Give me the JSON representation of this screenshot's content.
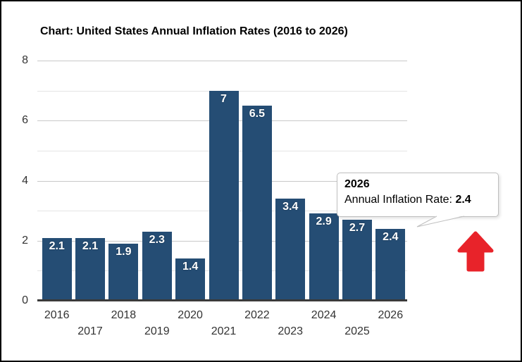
{
  "chart_data": {
    "type": "bar",
    "title": "Chart: United States Annual Inflation Rates (2016 to 2026)",
    "categories": [
      "2016",
      "2017",
      "2018",
      "2019",
      "2020",
      "2021",
      "2022",
      "2023",
      "2024",
      "2025",
      "2026"
    ],
    "values": [
      2.1,
      2.1,
      1.9,
      2.3,
      1.4,
      7,
      6.5,
      3.4,
      2.9,
      2.7,
      2.4
    ],
    "bar_labels": [
      "2.1",
      "2.1",
      "1.9",
      "2.3",
      "1.4",
      "7",
      "6.5",
      "3.4",
      "2.9",
      "2.7",
      "2.4"
    ],
    "xlabel": "",
    "ylabel": "",
    "ylim": [
      0,
      8
    ],
    "yticks": [
      0,
      2,
      4,
      6,
      8
    ],
    "gridline_step": 1,
    "grid": true,
    "legend": "none",
    "x_labels_staggered": true,
    "colors": {
      "bar": "#254d74",
      "bar_label_text": "#ffffff",
      "major_grid": "#c8c8c8",
      "minor_grid": "#e4e4e4",
      "axis_line": "#3a3a3a",
      "axis_text": "#333333",
      "title_text": "#000000"
    }
  },
  "tooltip": {
    "year": "2026",
    "rate_label": "Annual Inflation Rate:",
    "rate_value": "2.4"
  },
  "annotation": {
    "arrow_icon": "up-arrow-icon",
    "arrow_color": "#e8232a"
  }
}
